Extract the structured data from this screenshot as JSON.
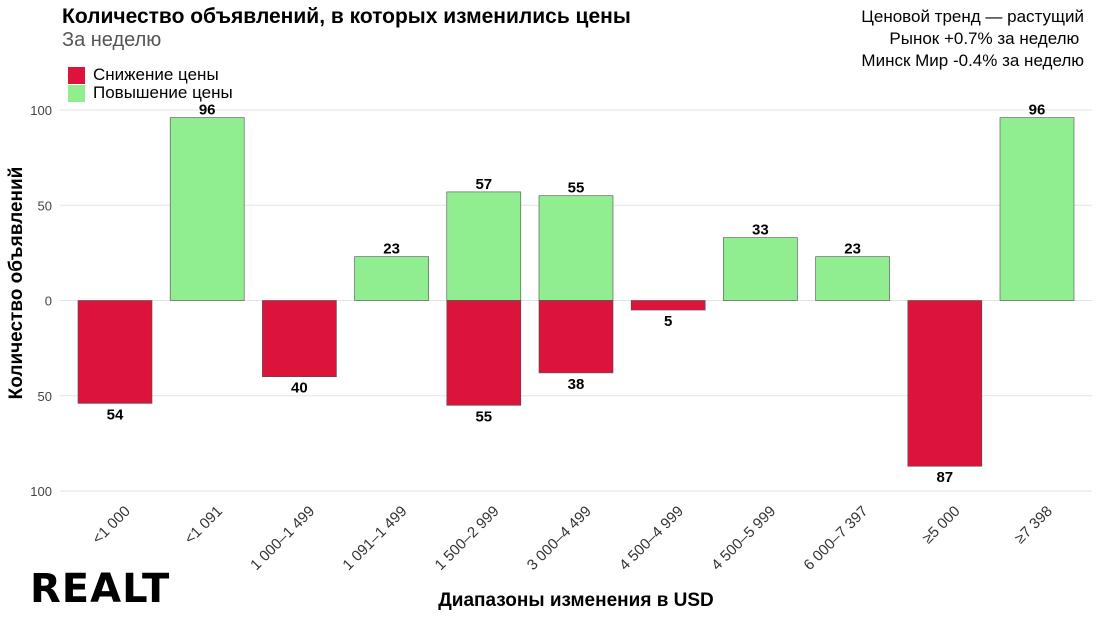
{
  "header": {
    "title": "Количество объявлений, в которых изменились цены",
    "subtitle": "За неделю"
  },
  "info": {
    "line1": "Ценовой тренд — растущий",
    "line2": "Рынок +0.7% за неделю ",
    "line3": "Минск Мир -0.4% за неделю"
  },
  "logo": {
    "text": "REALT"
  },
  "colors": {
    "decrease": "#DC143C",
    "increase": "#90EE90"
  },
  "chart_data": {
    "type": "bar",
    "xlabel": "Диапазоны изменения в USD",
    "ylabel": "Количество объявлений",
    "ylim": [
      -100,
      100
    ],
    "yticks": [
      100,
      50,
      0,
      50,
      100
    ],
    "legend_position": "top-left",
    "grid": true,
    "categories": [
      "<1 000",
      "<1 091",
      "1 000–1 499",
      "1 091–1 499",
      "1 500–2 999",
      "3 000–4 499",
      "4 500–4 999",
      "4 500–5 999",
      "6 000–7 397",
      "≥5 000",
      "≥7 398"
    ],
    "series": [
      {
        "name": "Снижение цены",
        "values": [
          54,
          0,
          40,
          0,
          55,
          38,
          5,
          0,
          0,
          87,
          0
        ]
      },
      {
        "name": "Повышение цены",
        "values": [
          0,
          96,
          0,
          23,
          57,
          55,
          0,
          33,
          23,
          0,
          96
        ]
      }
    ]
  }
}
